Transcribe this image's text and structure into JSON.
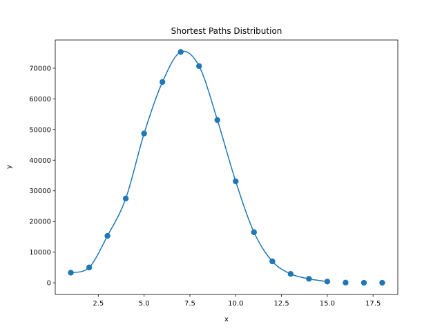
{
  "chart_data": {
    "type": "scatter",
    "title": "Shortest Paths Distribution",
    "xlabel": "x",
    "ylabel": "y",
    "xlim": [
      0.15,
      18.85
    ],
    "ylim": [
      -3800,
      79200
    ],
    "grid": false,
    "legend": "none",
    "colors": {
      "series": "#1f77b4",
      "axis": "#000000",
      "background": "#ffffff"
    },
    "x_ticks": [
      2.5,
      5.0,
      7.5,
      10.0,
      12.5,
      15.0,
      17.5
    ],
    "x_tick_labels": [
      "2.5",
      "5.0",
      "7.5",
      "10.0",
      "12.5",
      "15.0",
      "17.5"
    ],
    "y_ticks": [
      0,
      10000,
      20000,
      30000,
      40000,
      50000,
      60000,
      70000
    ],
    "y_tick_labels": [
      "0",
      "10000",
      "20000",
      "30000",
      "40000",
      "50000",
      "60000",
      "70000"
    ],
    "series": [
      {
        "marker": "circle",
        "smooth_line_until_x": 15,
        "x": [
          1,
          2,
          3,
          4,
          5,
          6,
          7,
          8,
          9,
          10,
          11,
          12,
          13,
          14,
          15,
          16,
          17,
          18
        ],
        "values": [
          3300,
          5000,
          15300,
          27500,
          48700,
          65500,
          75300,
          70700,
          53100,
          33100,
          16500,
          7000,
          2900,
          1300,
          400,
          60,
          20,
          10
        ]
      }
    ]
  }
}
